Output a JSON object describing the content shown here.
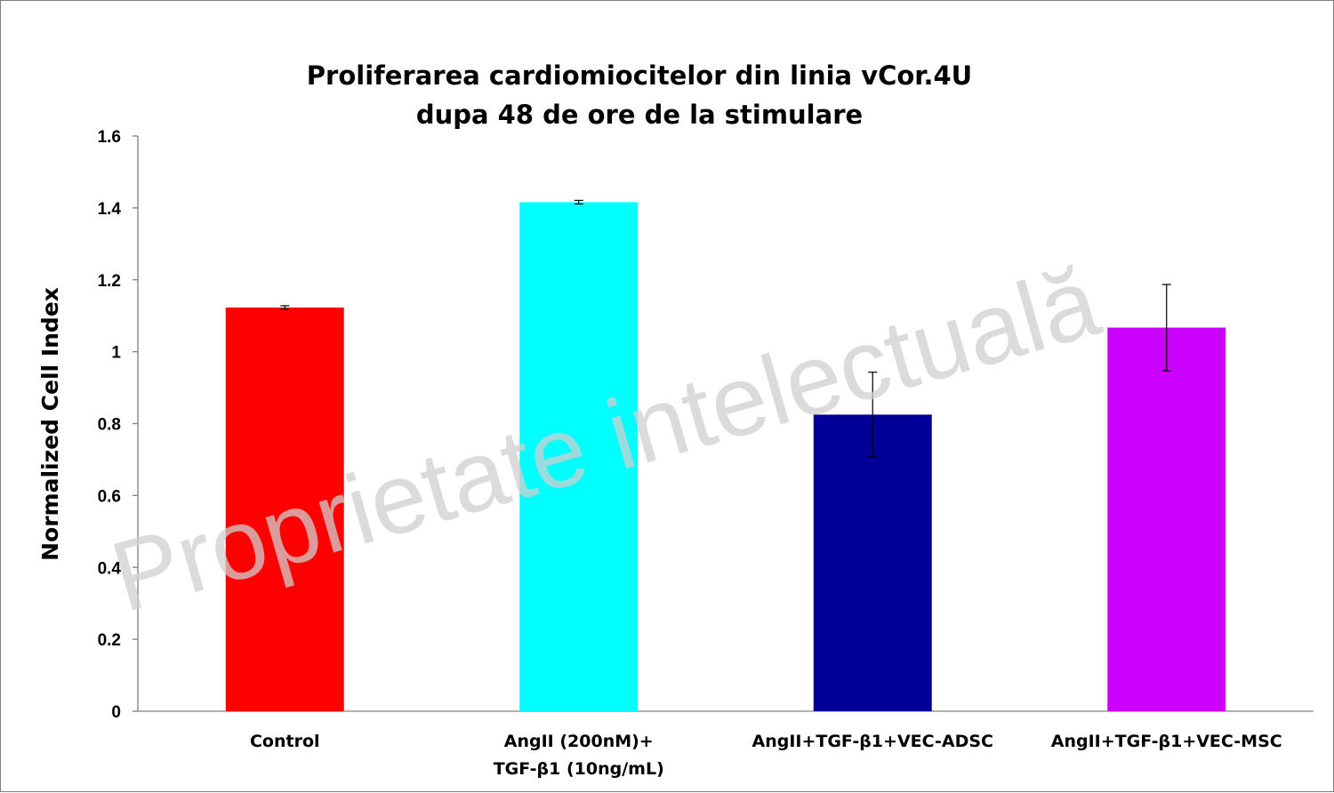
{
  "chart_data": {
    "type": "bar",
    "title": [
      "Proliferarea cardiomiocitelor din linia vCor.4U",
      "dupa 48 de ore de la stimulare"
    ],
    "xlabel": "",
    "ylabel": "Normalized Cell Index",
    "ylim": [
      0,
      1.6
    ],
    "yticks": [
      "0",
      "0.2",
      "0.4",
      "0.6",
      "0.8",
      "1",
      "1.2",
      "1.4",
      "1.6"
    ],
    "grid": false,
    "legend": "none",
    "categories": [
      [
        "Control"
      ],
      [
        "AngII (200nM)+",
        "TGF-β1 (10ng/mL)"
      ],
      [
        "AngII+TGF-β1+VEC-ADSC"
      ],
      [
        "AngII+TGF-β1+VEC-MSC"
      ]
    ],
    "values": [
      1.123,
      1.416,
      0.825,
      1.067
    ],
    "errors": [
      0.005,
      0.005,
      0.118,
      0.12
    ],
    "colors": [
      "#ff0000",
      "#00ffff",
      "#000099",
      "#cc00ff"
    ]
  },
  "watermark": "Proprietate intelectuală"
}
